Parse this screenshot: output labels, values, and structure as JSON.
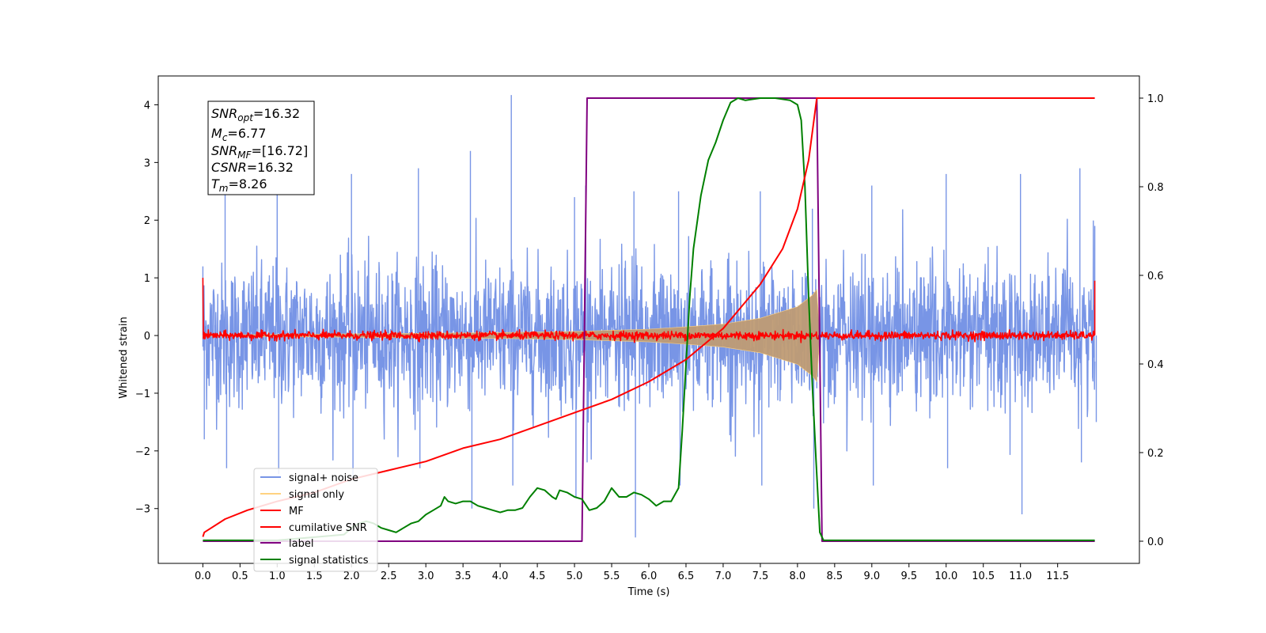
{
  "chart_data": {
    "type": "line",
    "title": "",
    "xlabel": "Time (s)",
    "ylabel": "Whitened strain",
    "xlim": [
      -0.6,
      12.6
    ],
    "ylim": [
      -3.95,
      4.5
    ],
    "ylim_right": [
      -0.05,
      1.05
    ],
    "x_ticks": [
      "0.0",
      "0.5",
      "1.0",
      "1.5",
      "2.0",
      "2.5",
      "3.0",
      "3.5",
      "4.0",
      "4.5",
      "5.0",
      "5.5",
      "6.0",
      "6.5",
      "7.0",
      "7.5",
      "8.0",
      "8.5",
      "9.0",
      "9.5",
      "10.0",
      "10.5",
      "11.0",
      "11.5"
    ],
    "y_ticks_left": [
      "4",
      "3",
      "2",
      "1",
      "0",
      "−1",
      "−2",
      "−3"
    ],
    "y_ticks_right": [
      "1.0",
      "0.8",
      "0.6",
      "0.4",
      "0.2",
      "0.0"
    ],
    "grid": false,
    "legend_position": "lower-left",
    "annotation": {
      "snr_opt": {
        "sym": "SNR",
        "sub": "opt",
        "val": "=16.32"
      },
      "mc": {
        "sym": "M",
        "sub": "c",
        "val": "=6.77"
      },
      "snr_mf": {
        "sym": "SNR",
        "sub": "MF",
        "val": "=[16.72]"
      },
      "csnr": {
        "sym": "CSNR",
        "sub": "",
        "val": "=16.32"
      },
      "tm": {
        "sym": "T",
        "sub": "m",
        "val": "=8.26"
      }
    },
    "series": [
      {
        "name": "signal+ noise",
        "color": "#7895e6",
        "axis": "left",
        "kind": "noise-band",
        "x_range": [
          0.0,
          12.0
        ],
        "typical_range": [
          -1.5,
          1.6
        ],
        "envelope_points": [
          [
            0.0,
            -1.8,
            1.2
          ],
          [
            0.3,
            -2.3,
            2.6
          ],
          [
            1.0,
            -2.4,
            3.0
          ],
          [
            2.0,
            -2.5,
            2.8
          ],
          [
            2.9,
            -2.3,
            2.9
          ],
          [
            3.6,
            -3.0,
            3.2
          ],
          [
            4.15,
            -2.6,
            4.17
          ],
          [
            5.0,
            -2.8,
            2.4
          ],
          [
            5.15,
            -2.2,
            2.6
          ],
          [
            5.8,
            -3.5,
            2.5
          ],
          [
            6.4,
            -2.6,
            2.5
          ],
          [
            7.5,
            -2.6,
            2.5
          ],
          [
            8.2,
            -3.0,
            2.2
          ],
          [
            9.0,
            -2.6,
            2.6
          ],
          [
            10.0,
            -2.3,
            2.8
          ],
          [
            11.0,
            -3.1,
            2.8
          ],
          [
            11.8,
            -2.2,
            2.9
          ],
          [
            12.0,
            -1.5,
            1.9
          ]
        ]
      },
      {
        "name": "signal only",
        "color": "#ffd280",
        "fill": "#bf9b74",
        "axis": "left",
        "kind": "chirp-envelope",
        "envelope": [
          [
            0.0,
            0.01
          ],
          [
            2.0,
            0.03
          ],
          [
            4.0,
            0.05
          ],
          [
            5.0,
            0.07
          ],
          [
            6.0,
            0.11
          ],
          [
            6.5,
            0.15
          ],
          [
            7.0,
            0.2
          ],
          [
            7.5,
            0.3
          ],
          [
            8.0,
            0.5
          ],
          [
            8.2,
            0.7
          ],
          [
            8.26,
            0.8
          ],
          [
            8.3,
            0.0
          ]
        ]
      },
      {
        "name": "MF",
        "color": "#ff0000",
        "axis": "left",
        "kind": "noisy-zero",
        "typical_amplitude": 0.06,
        "spike_max": 0.16,
        "edge_values": {
          "start": 1.0,
          "end": 0.95
        }
      },
      {
        "name": "cumilative SNR",
        "color": "#ff0000",
        "axis": "right",
        "x": [
          0.0,
          0.02,
          0.3,
          0.6,
          1.0,
          1.5,
          2.0,
          2.5,
          3.0,
          3.5,
          4.0,
          4.5,
          5.0,
          5.5,
          6.0,
          6.5,
          7.0,
          7.5,
          7.8,
          8.0,
          8.15,
          8.26,
          8.3,
          12.0
        ],
        "y": [
          0.01,
          0.02,
          0.05,
          0.07,
          0.09,
          0.11,
          0.14,
          0.16,
          0.18,
          0.21,
          0.23,
          0.26,
          0.29,
          0.32,
          0.36,
          0.41,
          0.48,
          0.58,
          0.66,
          0.75,
          0.86,
          1.0,
          1.0,
          1.0
        ]
      },
      {
        "name": "label",
        "color": "#800080",
        "axis": "right",
        "x": [
          0.0,
          5.1,
          5.17,
          8.26,
          8.33,
          12.0
        ],
        "y": [
          0.0,
          0.0,
          1.0,
          1.0,
          0.0,
          0.0
        ]
      },
      {
        "name": "signal statistics",
        "color": "#008000",
        "axis": "right",
        "x": [
          0.0,
          1.0,
          1.9,
          2.0,
          2.1,
          2.2,
          2.3,
          2.4,
          2.5,
          2.6,
          2.7,
          2.8,
          2.9,
          3.0,
          3.1,
          3.2,
          3.25,
          3.3,
          3.4,
          3.5,
          3.6,
          3.7,
          3.8,
          3.9,
          4.0,
          4.1,
          4.2,
          4.3,
          4.4,
          4.5,
          4.6,
          4.7,
          4.75,
          4.8,
          4.9,
          5.0,
          5.1,
          5.2,
          5.3,
          5.4,
          5.5,
          5.6,
          5.7,
          5.8,
          5.9,
          6.0,
          6.1,
          6.2,
          6.3,
          6.4,
          6.45,
          6.5,
          6.55,
          6.6,
          6.7,
          6.8,
          6.9,
          7.0,
          7.1,
          7.2,
          7.3,
          7.5,
          7.7,
          7.9,
          8.0,
          8.05,
          8.1,
          8.15,
          8.2,
          8.25,
          8.3,
          8.35,
          12.0
        ],
        "y": [
          0.002,
          0.002,
          0.015,
          0.03,
          0.04,
          0.045,
          0.04,
          0.03,
          0.025,
          0.02,
          0.03,
          0.04,
          0.045,
          0.06,
          0.07,
          0.08,
          0.1,
          0.09,
          0.085,
          0.09,
          0.09,
          0.08,
          0.075,
          0.07,
          0.065,
          0.07,
          0.07,
          0.075,
          0.1,
          0.12,
          0.115,
          0.1,
          0.095,
          0.115,
          0.11,
          0.1,
          0.095,
          0.07,
          0.075,
          0.09,
          0.12,
          0.1,
          0.1,
          0.11,
          0.105,
          0.095,
          0.08,
          0.09,
          0.09,
          0.12,
          0.25,
          0.4,
          0.55,
          0.66,
          0.78,
          0.86,
          0.9,
          0.95,
          0.99,
          1.0,
          0.995,
          1.0,
          1.0,
          0.995,
          0.985,
          0.95,
          0.8,
          0.55,
          0.35,
          0.18,
          0.02,
          0.002,
          0.002
        ]
      }
    ]
  }
}
